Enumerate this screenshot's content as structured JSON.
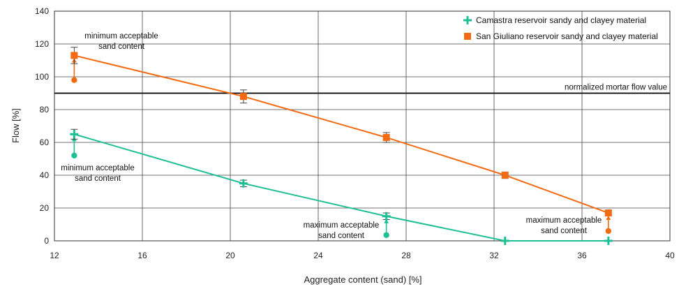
{
  "chart_data": {
    "type": "line",
    "xlabel": "Aggregate content (sand) [%]",
    "ylabel": "Flow [%]",
    "xlim": [
      12,
      40
    ],
    "ylim": [
      0,
      140
    ],
    "xticks": [
      12,
      16,
      20,
      24,
      28,
      32,
      36,
      40
    ],
    "yticks": [
      0,
      20,
      40,
      60,
      80,
      100,
      120,
      140
    ],
    "grid": true,
    "legend_position": "top-right",
    "reference_line": {
      "value": 90,
      "label": "normalized mortar flow value"
    },
    "series": [
      {
        "name": "Camastra reservoir sandy and clayey material",
        "color": "#1fbf96",
        "marker": "plus",
        "x": [
          12.9,
          20.6,
          27.1,
          32.5,
          37.2
        ],
        "y": [
          65,
          35,
          15,
          0,
          0
        ],
        "err": [
          3,
          2,
          2,
          0,
          0
        ],
        "shifts": [
          {
            "x": 12.9,
            "from": 52,
            "to": 65
          },
          {
            "x": 27.1,
            "from": 3.5,
            "to": 15
          }
        ]
      },
      {
        "name": "San Giuliano reservoir sandy and clayey material",
        "color": "#f26a12",
        "marker": "square",
        "x": [
          12.9,
          20.6,
          27.1,
          32.5,
          37.2
        ],
        "y": [
          113,
          88,
          63,
          40,
          17
        ],
        "err": [
          5,
          4,
          3,
          2,
          1.5
        ],
        "shifts": [
          {
            "x": 12.9,
            "from": 98,
            "to": 113
          },
          {
            "x": 37.2,
            "from": 6,
            "to": 17
          }
        ]
      }
    ],
    "annotations": [
      {
        "id": "sg-min",
        "lines": [
          "minimum acceptable",
          "sand content"
        ]
      },
      {
        "id": "ca-min",
        "lines": [
          "minimum acceptable",
          "sand content"
        ]
      },
      {
        "id": "ca-max",
        "lines": [
          "maximum acceptable",
          "sand content"
        ]
      },
      {
        "id": "sg-max",
        "lines": [
          "maximum acceptable",
          "sand content"
        ]
      }
    ]
  }
}
